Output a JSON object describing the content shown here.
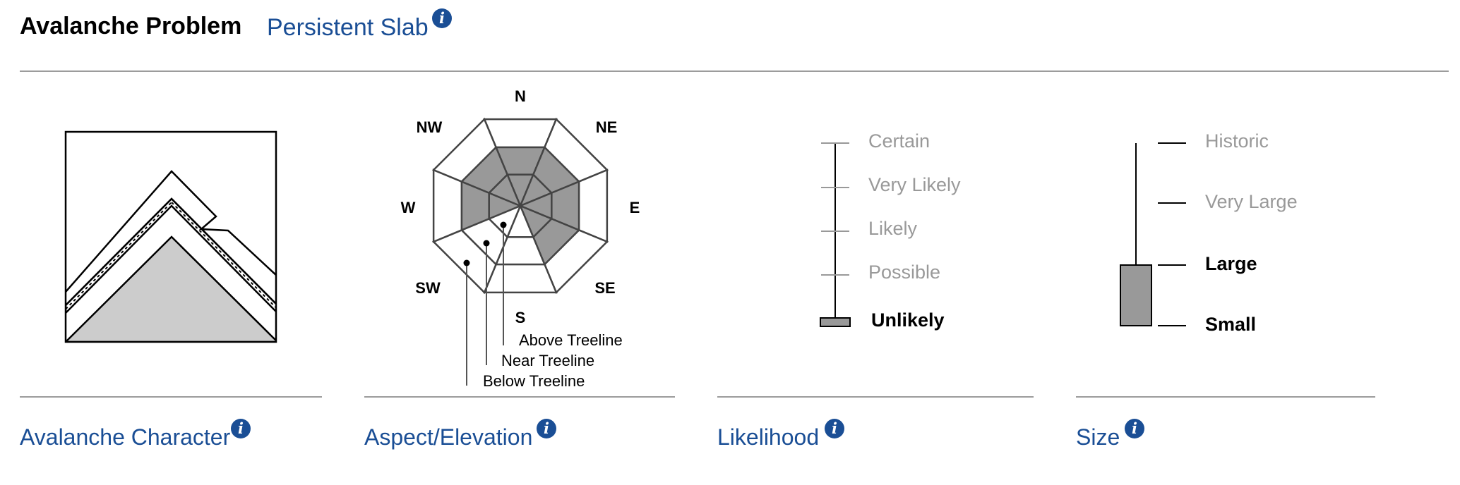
{
  "header": {
    "title": "Avalanche Problem",
    "problem_type": "Persistent Slab",
    "info_icon": "info-icon"
  },
  "aspect_elevation": {
    "directions": [
      "N",
      "NE",
      "E",
      "SE",
      "S",
      "SW",
      "W",
      "NW"
    ],
    "elevation_labels": [
      "Above Treeline",
      "Near Treeline",
      "Below Treeline"
    ],
    "shaded_color": "#999999",
    "shaded": {
      "above_treeline": [
        "N",
        "NE",
        "E",
        "SE",
        "W",
        "NW"
      ],
      "near_treeline": [
        "N",
        "NE",
        "E",
        "SE",
        "W",
        "NW"
      ],
      "below_treeline": []
    }
  },
  "likelihood": {
    "levels": [
      "Certain",
      "Very Likely",
      "Likely",
      "Possible",
      "Unlikely"
    ],
    "selected": "Unlikely",
    "marker_color": "#999999"
  },
  "size": {
    "levels": [
      "Historic",
      "Very Large",
      "Large",
      "Small"
    ],
    "range": [
      "Small",
      "Large"
    ],
    "bar_color": "#999999"
  },
  "footer": {
    "character_label": "Avalanche Character",
    "aspect_label": "Aspect/Elevation",
    "likelihood_label": "Likelihood",
    "size_label": "Size"
  },
  "colors": {
    "link": "#1a4e95",
    "inactive_text": "#999999",
    "rule": "#9c9c9c",
    "slope_fill": "#cccccc"
  }
}
